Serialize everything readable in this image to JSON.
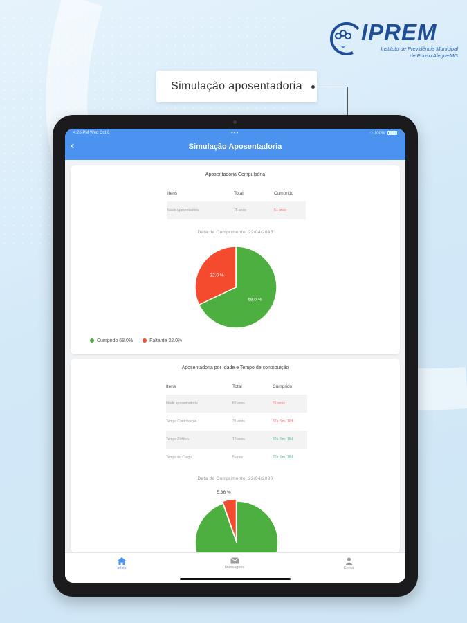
{
  "logo": {
    "title": "IPREM",
    "subtitle_line1": "Instituto de Previdência Municipal",
    "subtitle_line2": "de Pouso Alegre-MG"
  },
  "callout": {
    "text": "Simulação aposentadoria"
  },
  "status_bar": {
    "time": "4:26 PM   Wed Oct 6",
    "center": "•••",
    "battery": "100%"
  },
  "app_bar": {
    "title": "Simulação Aposentadoria",
    "back_icon": "back-chevron-icon"
  },
  "card1": {
    "title": "Aposentadoria Compulsória",
    "table": {
      "headers": [
        "Itens",
        "Total",
        "Cumprido"
      ],
      "rows": [
        {
          "item": "Idade Aposentadoria",
          "total": "75 anos",
          "cumprido": "51 anos"
        }
      ]
    },
    "data_cumprimento": "Data de Cumprimento: 22/04/2045",
    "chart_data": {
      "type": "pie",
      "slices": [
        {
          "name": "Cumprido",
          "value": 68.0,
          "label": "68.0 %",
          "color": "#4caf3f"
        },
        {
          "name": "Faltante",
          "value": 32.0,
          "label": "32.0 %",
          "color": "#f44a2e"
        }
      ]
    },
    "legend": [
      {
        "label": "Cumprido  68.0%",
        "color": "#4caf3f"
      },
      {
        "label": "Faltante  32.0%",
        "color": "#f44a2e"
      }
    ]
  },
  "card2": {
    "title": "Aposentadoria por Idade e Tempo de contribuição",
    "table": {
      "headers": [
        "Itens",
        "Total",
        "Cumprido"
      ],
      "rows": [
        {
          "item": "Idade aposentadoria",
          "total": "60 anos",
          "cumprido": "51 anos",
          "status": "red"
        },
        {
          "item": "Tempo Contribuição",
          "total": "35 anos",
          "cumprido": "32a. 9m. 16d.",
          "status": "red"
        },
        {
          "item": "Tempo Público",
          "total": "10 anos",
          "cumprido": "32a. 9m. 16d.",
          "status": "green"
        },
        {
          "item": "Tempo no Cargo",
          "total": "5 anos",
          "cumprido": "32a. 9m. 16d.",
          "status": "green"
        }
      ]
    },
    "data_cumprimento": "Data de Cumprimento: 22/04/2030",
    "chart_data": {
      "type": "pie",
      "slices": [
        {
          "name": "Cumprido",
          "value": 94.64,
          "label": "",
          "color": "#4caf3f"
        },
        {
          "name": "Faltante",
          "value": 5.36,
          "label": "5.36 %",
          "color": "#f44a2e"
        }
      ]
    }
  },
  "bottom_nav": [
    {
      "label": "Início",
      "icon": "home-icon",
      "active": true
    },
    {
      "label": "Mensagens",
      "icon": "mail-icon",
      "active": false
    },
    {
      "label": "Conta",
      "icon": "user-icon",
      "active": false
    }
  ],
  "colors": {
    "primary": "#4b93ee",
    "green": "#4caf3f",
    "red": "#f44a2e",
    "accent_text": "#1e4e96"
  }
}
